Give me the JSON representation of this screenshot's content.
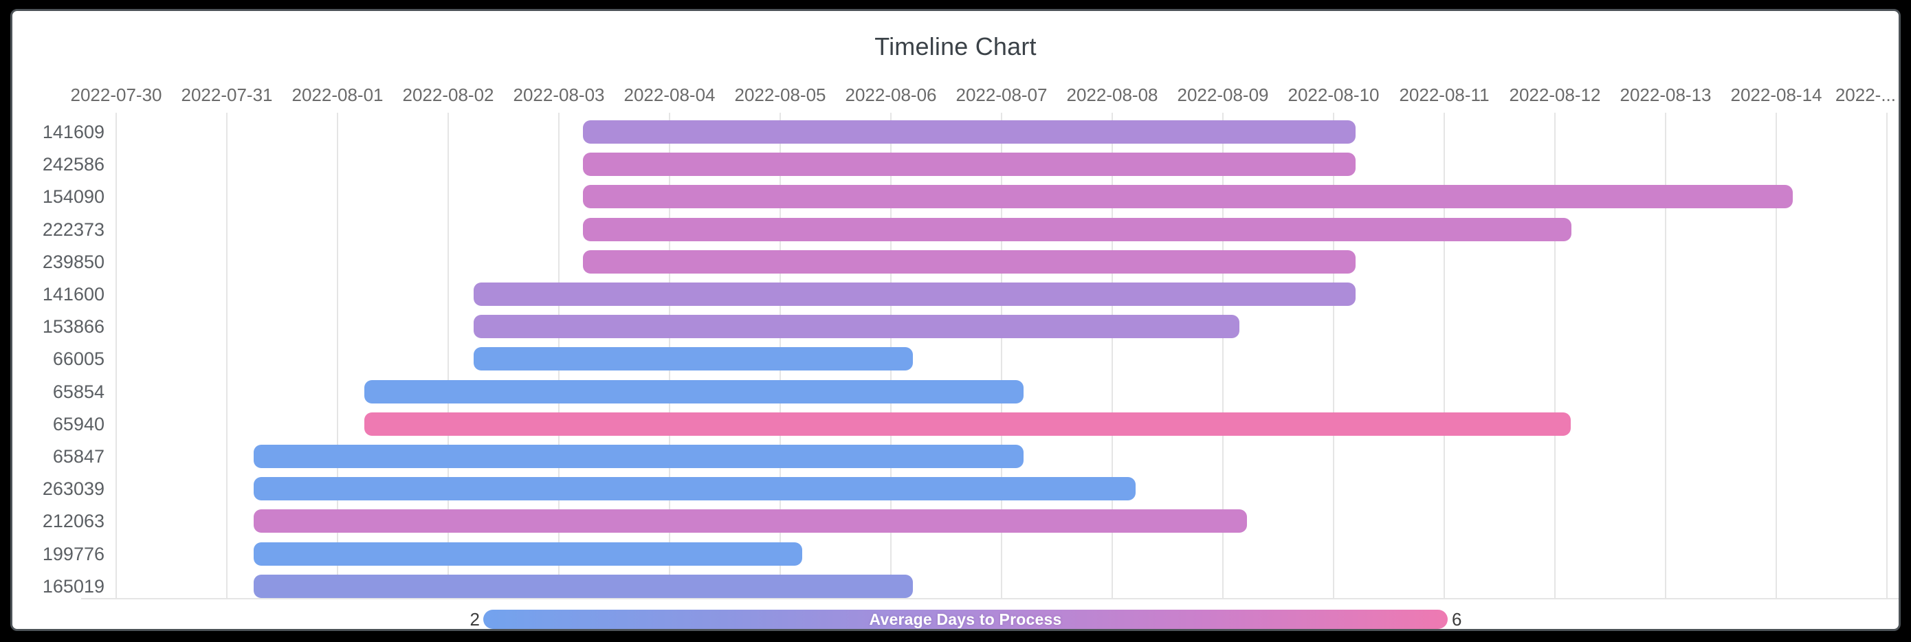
{
  "window": {
    "frame_color": "#000000",
    "card_color": "#ffffff"
  },
  "chart_data": {
    "type": "bar",
    "subtype": "timeline-gantt",
    "title": "Timeline Chart",
    "grid": true,
    "x_axis": {
      "origin_date": "2022-07-30",
      "tick_labels": [
        "2022-07-30",
        "2022-07-31",
        "2022-08-01",
        "2022-08-02",
        "2022-08-03",
        "2022-08-04",
        "2022-08-05",
        "2022-08-06",
        "2022-08-07",
        "2022-08-08",
        "2022-08-09",
        "2022-08-10",
        "2022-08-11",
        "2022-08-12",
        "2022-08-13",
        "2022-08-14",
        "2022-..."
      ],
      "position": "top"
    },
    "y_axis": {
      "labels": [
        "141609",
        "242586",
        "154090",
        "222373",
        "239850",
        "141600",
        "153866",
        "66005",
        "65854",
        "65940",
        "65847",
        "263039",
        "212063",
        "199776",
        "165019"
      ]
    },
    "tasks": [
      {
        "id": "141609",
        "start_date": "2022-08-03",
        "end_date": "2022-08-10",
        "start_day": 4.22,
        "end_day": 11.2,
        "color": "#ad8cd9",
        "color_value_estimate": 4.2
      },
      {
        "id": "242586",
        "start_date": "2022-08-03",
        "end_date": "2022-08-10",
        "start_day": 4.22,
        "end_day": 11.2,
        "color": "#cc80cb",
        "color_value_estimate": 5.1
      },
      {
        "id": "154090",
        "start_date": "2022-08-03",
        "end_date": "2022-08-14",
        "start_day": 4.22,
        "end_day": 15.15,
        "color": "#cc80cb",
        "color_value_estimate": 5.1
      },
      {
        "id": "222373",
        "start_date": "2022-08-03",
        "end_date": "2022-08-12",
        "start_day": 4.22,
        "end_day": 13.15,
        "color": "#cc80cb",
        "color_value_estimate": 5.1
      },
      {
        "id": "239850",
        "start_date": "2022-08-03",
        "end_date": "2022-08-10",
        "start_day": 4.22,
        "end_day": 11.2,
        "color": "#cc80cb",
        "color_value_estimate": 5.1
      },
      {
        "id": "141600",
        "start_date": "2022-08-02",
        "end_date": "2022-08-10",
        "start_day": 3.23,
        "end_day": 11.2,
        "color": "#ad8cd9",
        "color_value_estimate": 4.2
      },
      {
        "id": "153866",
        "start_date": "2022-08-02",
        "end_date": "2022-08-09",
        "start_day": 3.23,
        "end_day": 10.15,
        "color": "#ad8cd9",
        "color_value_estimate": 4.2
      },
      {
        "id": "66005",
        "start_date": "2022-08-02",
        "end_date": "2022-08-06",
        "start_day": 3.23,
        "end_day": 7.2,
        "color": "#73a3ee",
        "color_value_estimate": 2.5
      },
      {
        "id": "65854",
        "start_date": "2022-08-01",
        "end_date": "2022-08-07",
        "start_day": 2.24,
        "end_day": 8.2,
        "color": "#73a3ee",
        "color_value_estimate": 2.5
      },
      {
        "id": "65940",
        "start_date": "2022-08-01",
        "end_date": "2022-08-12",
        "start_day": 2.24,
        "end_day": 13.14,
        "color": "#ee7ab2",
        "color_value_estimate": 5.9
      },
      {
        "id": "65847",
        "start_date": "2022-07-31",
        "end_date": "2022-08-07",
        "start_day": 1.24,
        "end_day": 8.2,
        "color": "#73a3ee",
        "color_value_estimate": 2.5
      },
      {
        "id": "263039",
        "start_date": "2022-07-31",
        "end_date": "2022-08-08",
        "start_day": 1.24,
        "end_day": 9.21,
        "color": "#73a3ee",
        "color_value_estimate": 2.5
      },
      {
        "id": "212063",
        "start_date": "2022-07-31",
        "end_date": "2022-08-09",
        "start_day": 1.24,
        "end_day": 10.22,
        "color": "#cc80cb",
        "color_value_estimate": 5.1
      },
      {
        "id": "199776",
        "start_date": "2022-07-31",
        "end_date": "2022-08-05",
        "start_day": 1.24,
        "end_day": 6.2,
        "color": "#73a3ee",
        "color_value_estimate": 2.5
      },
      {
        "id": "165019",
        "start_date": "2022-07-31",
        "end_date": "2022-08-06",
        "start_day": 1.24,
        "end_day": 7.2,
        "color": "#8d97e2",
        "color_value_estimate": 3.3
      }
    ],
    "legend": {
      "label": "Average Days to Process",
      "min": "2",
      "max": "6",
      "gradient": [
        "#73a3ee",
        "#8d97e2",
        "#ad8cd9",
        "#cc80cb",
        "#ee7ab2"
      ],
      "position": "bottom"
    }
  }
}
